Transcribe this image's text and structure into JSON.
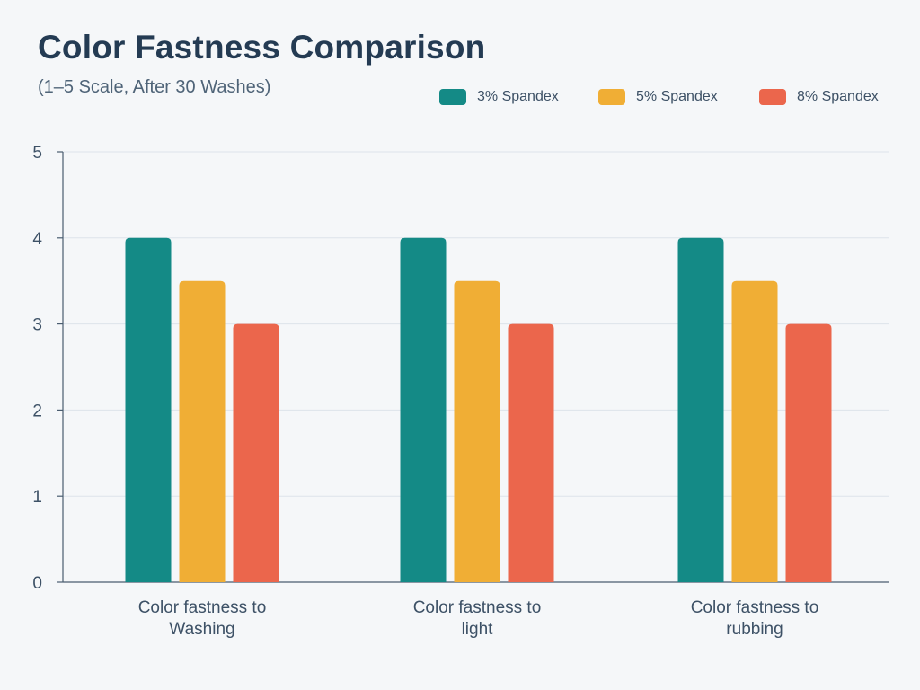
{
  "title": "Color Fastness Comparison",
  "subtitle": "(1–5 Scale, After 30 Washes)",
  "legend": [
    {
      "label": "3% Spandex",
      "color": "#148a86"
    },
    {
      "label": "5% Spandex",
      "color": "#f0ae35"
    },
    {
      "label": "8% Spandex",
      "color": "#eb664c"
    }
  ],
  "chart_data": {
    "type": "bar",
    "title": "Color Fastness Comparison",
    "subtitle": "(1–5 Scale, After 30 Washes)",
    "xlabel": "",
    "ylabel": "",
    "ylim": [
      0,
      5
    ],
    "yticks": [
      0,
      1,
      2,
      3,
      4,
      5
    ],
    "grid": true,
    "legend_position": "top-right",
    "categories": [
      [
        "Color fastness to",
        "Washing"
      ],
      [
        "Color fastness to",
        "light"
      ],
      [
        "Color fastness to",
        "rubbing"
      ]
    ],
    "series": [
      {
        "name": "3% Spandex",
        "color": "#148a86",
        "values": [
          4,
          4,
          4
        ]
      },
      {
        "name": "5% Spandex",
        "color": "#f0ae35",
        "values": [
          3.5,
          3.5,
          3.5
        ]
      },
      {
        "name": "8% Spandex",
        "color": "#eb664c",
        "values": [
          3,
          3,
          3
        ]
      }
    ]
  }
}
